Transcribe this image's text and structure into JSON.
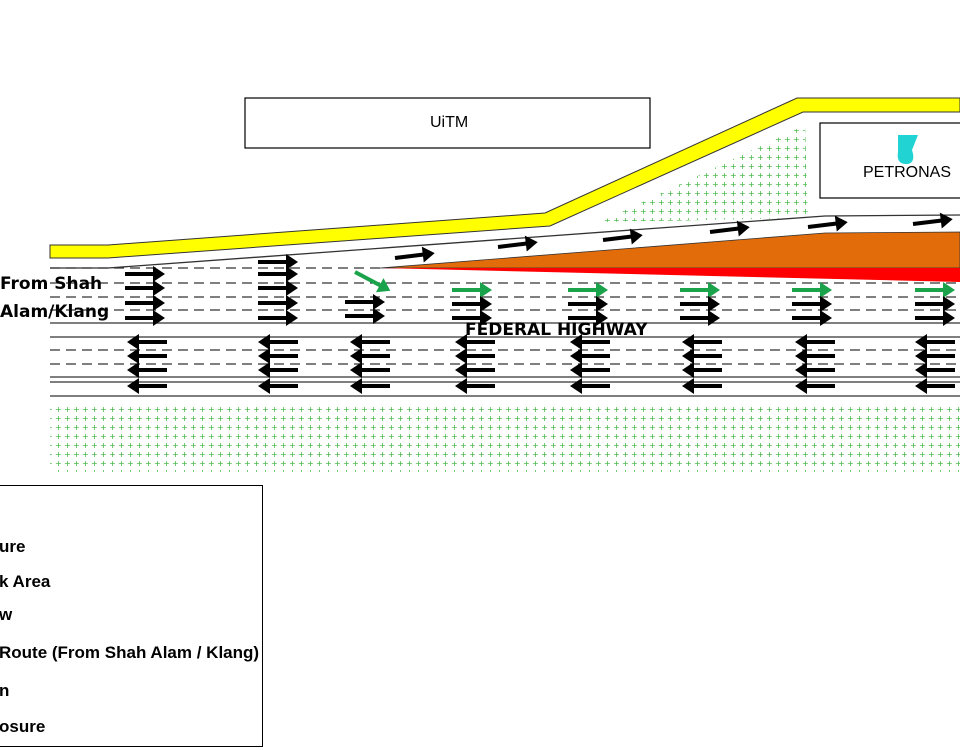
{
  "labels": {
    "uitm": "UiTM",
    "petronas": "PETRONAS",
    "highway": "FEDERAL HIGHWAY",
    "from_line1": "From Shah",
    "from_line2": "Alam/Klang"
  },
  "legend": {
    "items": [
      "ure",
      "k Area",
      "w",
      "Route (From Shah Alam / Klang)",
      "n",
      "osure"
    ]
  },
  "colors": {
    "kerb": "#ffff00",
    "work_area": "#e36c0a",
    "closure": "#ff0000",
    "diversion_arrow": "#1aa34a",
    "traffic_arrow": "#000000",
    "greenery": "#33b233",
    "petronas_logo": "#22d3d3"
  }
}
